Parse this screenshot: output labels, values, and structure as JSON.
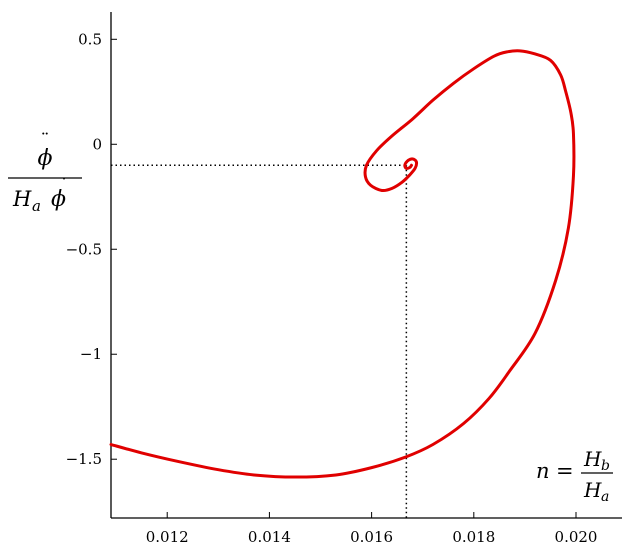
{
  "chart_data": {
    "type": "line",
    "title": "",
    "xlim": [
      0.0109,
      0.0209
    ],
    "ylim": [
      -1.78,
      0.63
    ],
    "x_ticks": [
      0.012,
      0.014,
      0.016,
      0.018,
      0.02
    ],
    "x_tick_labels": [
      "0.012",
      "0.014",
      "0.016",
      "0.018",
      "0.020"
    ],
    "y_ticks": [
      0.5,
      0,
      -0.5,
      -1,
      -1.5
    ],
    "y_tick_labels": [
      "0.5",
      "0",
      "−0.5",
      "−1",
      "−1.5"
    ],
    "ylabel": {
      "numerator": "ϕ",
      "denominator_base": "H",
      "denominator_sub": "a",
      "denominator_tail": "ϕ"
    },
    "xlabel": {
      "lhs": "n",
      "equals": "=",
      "numerator_base": "H",
      "numerator_sub": "b",
      "denominator_base": "H",
      "denominator_sub": "a"
    },
    "fixed_point": {
      "x": 0.01668,
      "y": -0.1
    },
    "series": [
      {
        "color": "#e00000",
        "x": [
          0.0109,
          0.0115,
          0.0122,
          0.013,
          0.0137,
          0.0145,
          0.0153,
          0.016,
          0.01666,
          0.0172,
          0.0178,
          0.0183,
          0.0187,
          0.0192,
          0.0196,
          0.01985,
          0.01995,
          0.01995,
          0.0199,
          0.0198,
          0.0197,
          0.0195,
          0.0192,
          0.0189,
          0.01865,
          0.0184,
          0.018,
          0.0176,
          0.0172,
          0.0168,
          0.0164,
          0.0161,
          0.0159,
          0.01588,
          0.01598,
          0.0162,
          0.0164,
          0.0166,
          0.01675,
          0.01685,
          0.01688,
          0.01685,
          0.01678,
          0.0167,
          0.01665,
          0.01668,
          0.01675,
          0.01678
        ],
        "y": [
          -1.43,
          -1.47,
          -1.51,
          -1.55,
          -1.575,
          -1.585,
          -1.575,
          -1.54,
          -1.49,
          -1.43,
          -1.33,
          -1.21,
          -1.08,
          -0.9,
          -0.65,
          -0.4,
          -0.15,
          0.05,
          0.15,
          0.25,
          0.33,
          0.4,
          0.43,
          0.445,
          0.44,
          0.42,
          0.36,
          0.29,
          0.21,
          0.12,
          0.04,
          -0.03,
          -0.1,
          -0.155,
          -0.195,
          -0.22,
          -0.21,
          -0.18,
          -0.145,
          -0.115,
          -0.09,
          -0.075,
          -0.07,
          -0.08,
          -0.1,
          -0.115,
          -0.11,
          -0.1
        ]
      }
    ],
    "grid": false,
    "legend": false
  }
}
